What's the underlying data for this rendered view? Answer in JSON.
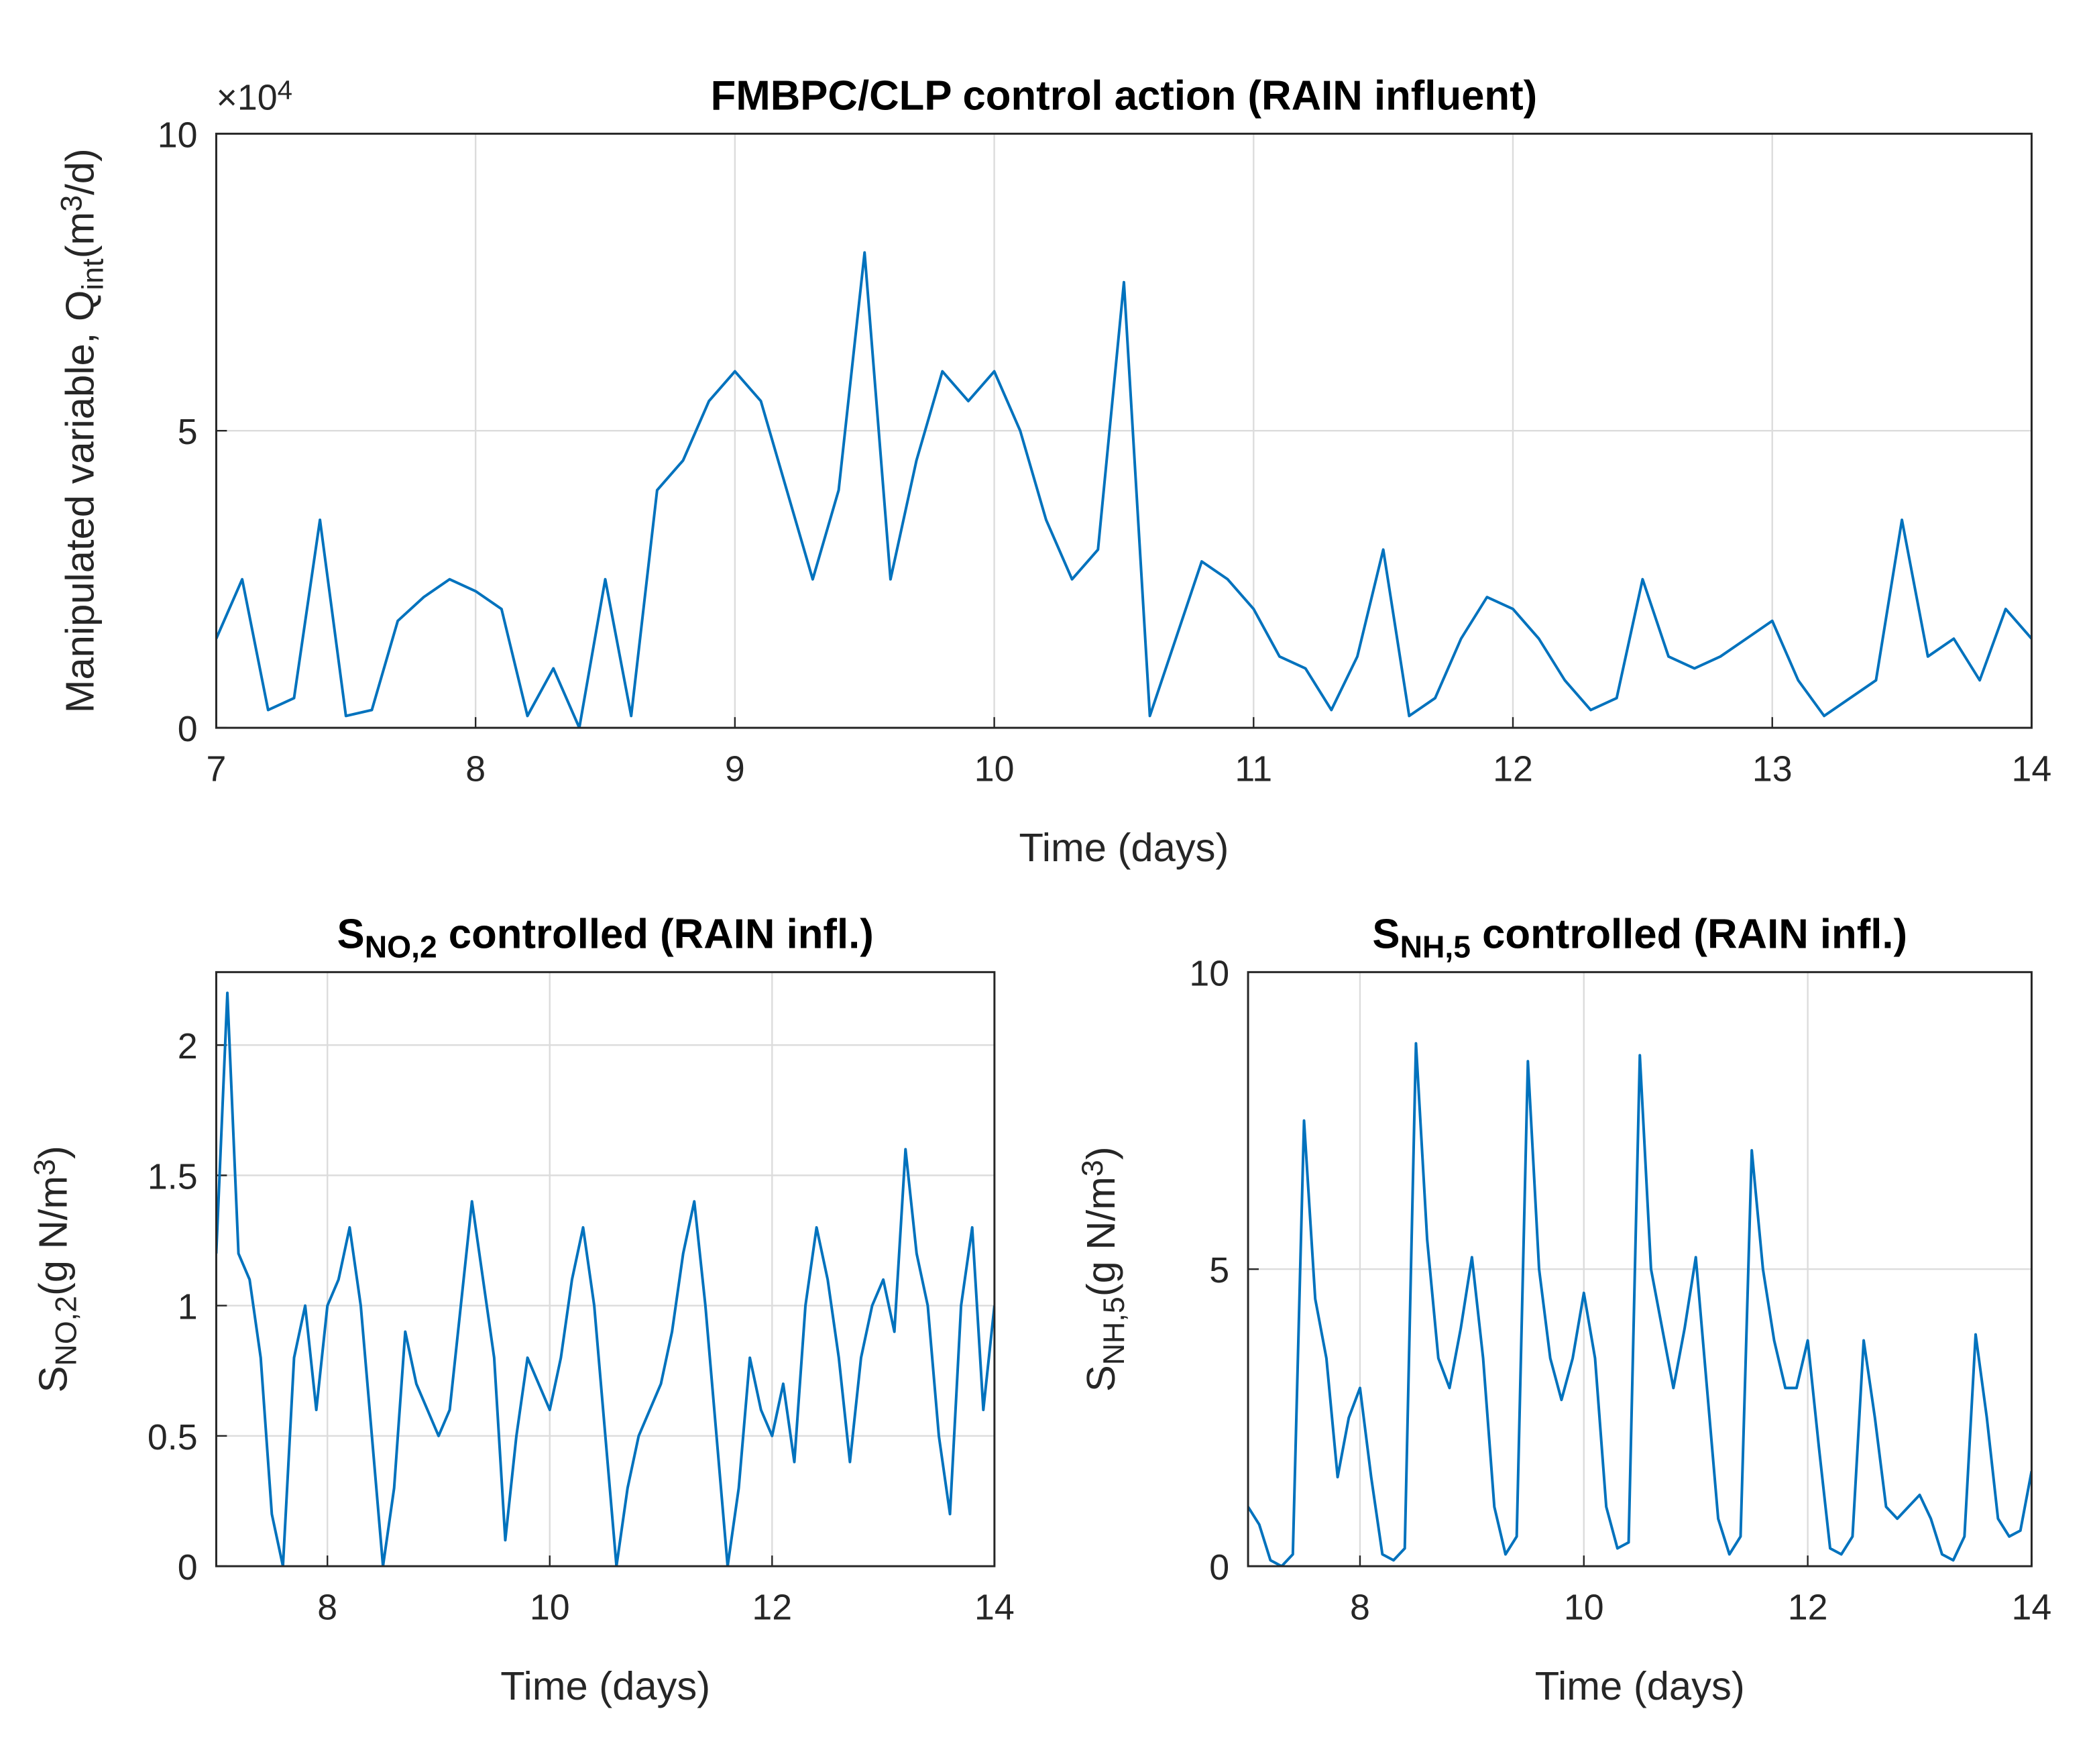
{
  "chart_data": [
    {
      "type": "line",
      "title": [
        {
          "text": "FMBPC/CLP control action (RAIN influent)"
        }
      ],
      "ylabel": [
        {
          "text": "Manipulated variable, Q"
        },
        {
          "text": "int",
          "shift": "sub"
        },
        {
          "text": "(m"
        },
        {
          "text": "3",
          "shift": "sup"
        },
        {
          "text": "/d)"
        }
      ],
      "y_multiplier": [
        {
          "text": "×10"
        },
        {
          "text": "4",
          "shift": "sup"
        }
      ],
      "xlabel": [
        {
          "text": "Time (days)"
        }
      ],
      "xlim": [
        7,
        14
      ],
      "xticks": [
        7,
        8,
        9,
        10,
        11,
        12,
        13,
        14
      ],
      "ylim": [
        0,
        10
      ],
      "yticks": [
        0,
        5,
        10
      ],
      "grid": true,
      "color": "#0072bd",
      "x": [
        7.0,
        7.1,
        7.2,
        7.3,
        7.4,
        7.5,
        7.6,
        7.7,
        7.8,
        7.9,
        8.0,
        8.1,
        8.2,
        8.3,
        8.4,
        8.5,
        8.6,
        8.7,
        8.8,
        8.9,
        9.0,
        9.1,
        9.2,
        9.3,
        9.4,
        9.5,
        9.6,
        9.7,
        9.8,
        9.9,
        10.0,
        10.1,
        10.2,
        10.3,
        10.4,
        10.5,
        10.6,
        10.7,
        10.8,
        10.9,
        11.0,
        11.1,
        11.2,
        11.3,
        11.4,
        11.5,
        11.6,
        11.7,
        11.8,
        11.9,
        12.0,
        12.1,
        12.2,
        12.3,
        12.4,
        12.5,
        12.6,
        12.7,
        12.8,
        12.9,
        13.0,
        13.1,
        13.2,
        13.3,
        13.4,
        13.5,
        13.6,
        13.7,
        13.8,
        13.9,
        14.0
      ],
      "y": [
        1.5,
        2.5,
        0.3,
        0.5,
        3.5,
        0.2,
        0.3,
        1.8,
        2.2,
        2.5,
        2.3,
        2.0,
        0.2,
        1.0,
        0,
        2.5,
        0.2,
        4.0,
        4.5,
        5.5,
        6.0,
        5.5,
        4.0,
        2.5,
        4.0,
        8.0,
        2.5,
        4.5,
        6.0,
        5.5,
        6.0,
        5.0,
        3.5,
        2.5,
        3.0,
        7.5,
        0.2,
        1.5,
        2.8,
        2.5,
        2.0,
        1.2,
        1.0,
        0.3,
        1.2,
        3.0,
        0.2,
        0.5,
        1.5,
        2.2,
        2.0,
        1.5,
        0.8,
        0.3,
        0.5,
        2.5,
        1.2,
        1.0,
        1.2,
        1.5,
        1.8,
        0.8,
        0.2,
        0.5,
        0.8,
        3.5,
        1.2,
        1.5,
        0.8,
        2.0,
        1.5
      ]
    },
    {
      "type": "line",
      "title": [
        {
          "text": "S"
        },
        {
          "text": "NO,2",
          "shift": "sub"
        },
        {
          "text": " controlled (RAIN infl.)"
        }
      ],
      "ylabel": [
        {
          "text": "S"
        },
        {
          "text": "NO,2",
          "shift": "sub"
        },
        {
          "text": "(g N/m"
        },
        {
          "text": "3",
          "shift": "sup"
        },
        {
          "text": ")"
        }
      ],
      "xlabel": [
        {
          "text": "Time (days)"
        }
      ],
      "xlim": [
        7,
        14
      ],
      "xticks": [
        8,
        10,
        12,
        14
      ],
      "ylim": [
        0,
        2.28
      ],
      "yticks": [
        0,
        0.5,
        1,
        1.5,
        2
      ],
      "grid": true,
      "color": "#0072bd",
      "x": [
        7.0,
        7.1,
        7.2,
        7.3,
        7.4,
        7.5,
        7.6,
        7.7,
        7.8,
        7.9,
        8.0,
        8.1,
        8.2,
        8.3,
        8.4,
        8.5,
        8.6,
        8.7,
        8.8,
        8.9,
        9.0,
        9.1,
        9.2,
        9.3,
        9.4,
        9.5,
        9.6,
        9.7,
        9.8,
        9.9,
        10.0,
        10.1,
        10.2,
        10.3,
        10.4,
        10.5,
        10.6,
        10.7,
        10.8,
        10.9,
        11.0,
        11.1,
        11.2,
        11.3,
        11.4,
        11.5,
        11.6,
        11.7,
        11.8,
        11.9,
        12.0,
        12.1,
        12.2,
        12.3,
        12.4,
        12.5,
        12.6,
        12.7,
        12.8,
        12.9,
        13.0,
        13.1,
        13.2,
        13.3,
        13.4,
        13.5,
        13.6,
        13.7,
        13.8,
        13.9,
        14.0
      ],
      "y": [
        1.2,
        2.2,
        1.2,
        1.1,
        0.8,
        0.2,
        0.0,
        0.8,
        1.0,
        0.6,
        1.0,
        1.1,
        1.3,
        1.0,
        0.5,
        0.0,
        0.3,
        0.9,
        0.7,
        0.6,
        0.5,
        0.6,
        1.0,
        1.4,
        1.1,
        0.8,
        0.1,
        0.5,
        0.8,
        0.7,
        0.6,
        0.8,
        1.1,
        1.3,
        1.0,
        0.5,
        0.0,
        0.3,
        0.5,
        0.6,
        0.7,
        0.9,
        1.2,
        1.4,
        1.0,
        0.5,
        0.0,
        0.3,
        0.8,
        0.6,
        0.5,
        0.7,
        0.4,
        1.0,
        1.3,
        1.1,
        0.8,
        0.4,
        0.8,
        1.0,
        1.1,
        0.9,
        1.6,
        1.2,
        1.0,
        0.5,
        0.2,
        1.0,
        1.3,
        0.6,
        1.0
      ]
    },
    {
      "type": "line",
      "title": [
        {
          "text": "S"
        },
        {
          "text": "NH,5",
          "shift": "sub"
        },
        {
          "text": " controlled (RAIN infl.)"
        }
      ],
      "ylabel": [
        {
          "text": "S"
        },
        {
          "text": "NH,5",
          "shift": "sub"
        },
        {
          "text": "(g N/m"
        },
        {
          "text": "3",
          "shift": "sup"
        },
        {
          "text": ")"
        }
      ],
      "xlabel": [
        {
          "text": "Time (days)"
        }
      ],
      "xlim": [
        7,
        14
      ],
      "xticks": [
        8,
        10,
        12,
        14
      ],
      "ylim": [
        0,
        10
      ],
      "yticks": [
        0,
        5,
        10
      ],
      "grid": true,
      "color": "#0072bd",
      "x": [
        7.0,
        7.1,
        7.2,
        7.3,
        7.4,
        7.5,
        7.6,
        7.7,
        7.8,
        7.9,
        8.0,
        8.1,
        8.2,
        8.3,
        8.4,
        8.5,
        8.6,
        8.7,
        8.8,
        8.9,
        9.0,
        9.1,
        9.2,
        9.3,
        9.4,
        9.5,
        9.6,
        9.7,
        9.8,
        9.9,
        10.0,
        10.1,
        10.2,
        10.3,
        10.4,
        10.5,
        10.6,
        10.7,
        10.8,
        10.9,
        11.0,
        11.1,
        11.2,
        11.3,
        11.4,
        11.5,
        11.6,
        11.7,
        11.8,
        11.9,
        12.0,
        12.1,
        12.2,
        12.3,
        12.4,
        12.5,
        12.6,
        12.7,
        12.8,
        12.9,
        13.0,
        13.1,
        13.2,
        13.3,
        13.4,
        13.5,
        13.6,
        13.7,
        13.8,
        13.9,
        14.0
      ],
      "y": [
        1.0,
        0.7,
        0.1,
        0.0,
        0.2,
        7.5,
        4.5,
        3.5,
        1.5,
        2.5,
        3.0,
        1.5,
        0.2,
        0.1,
        0.3,
        8.8,
        5.5,
        3.5,
        3.0,
        4.0,
        5.2,
        3.5,
        1.0,
        0.2,
        0.5,
        8.5,
        5.0,
        3.5,
        2.8,
        3.5,
        4.6,
        3.5,
        1.0,
        0.3,
        0.4,
        8.6,
        5.0,
        4.0,
        3.0,
        4.0,
        5.2,
        3.0,
        0.8,
        0.2,
        0.5,
        7.0,
        5.0,
        3.8,
        3.0,
        3.0,
        3.8,
        2.0,
        0.3,
        0.2,
        0.5,
        3.8,
        2.5,
        1.0,
        0.8,
        1.0,
        1.2,
        0.8,
        0.2,
        0.1,
        0.5,
        3.9,
        2.5,
        0.8,
        0.5,
        0.6,
        1.6
      ]
    }
  ]
}
